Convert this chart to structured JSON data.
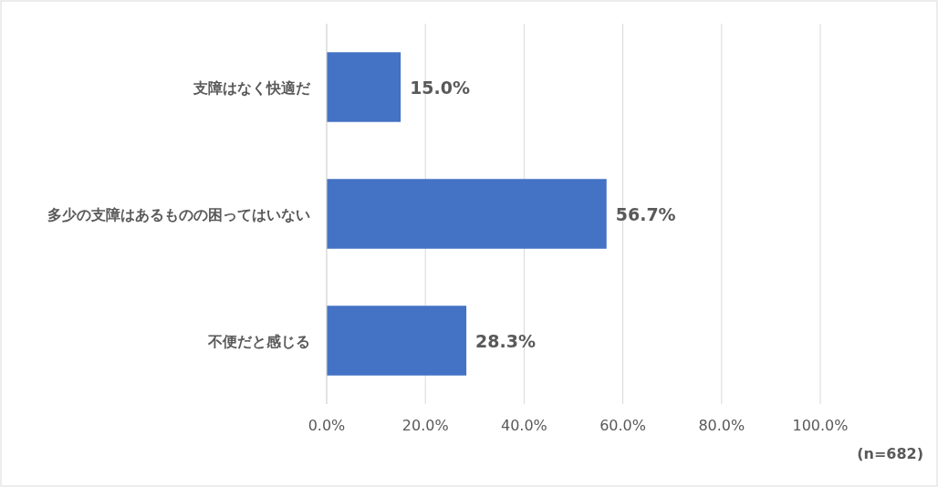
{
  "chart_data": {
    "type": "bar",
    "orientation": "horizontal",
    "categories": [
      "支障はなく快適だ",
      "多少の支障はあるものの困ってはいない",
      "不便だと感じる"
    ],
    "values": [
      15.0,
      56.7,
      28.3
    ],
    "value_labels": [
      "15.0%",
      "56.7%",
      "28.3%"
    ],
    "color": "#4472c4",
    "xlim": [
      0,
      100
    ],
    "xticks": [
      {
        "value": 0,
        "label": "0.0%"
      },
      {
        "value": 20,
        "label": "20.0%"
      },
      {
        "value": 40,
        "label": "40.0%"
      },
      {
        "value": 60,
        "label": "60.0%"
      },
      {
        "value": 80,
        "label": "80.0%"
      },
      {
        "value": 100,
        "label": "100.0%"
      }
    ],
    "grid": "x",
    "annotations": [
      "(n=682)"
    ]
  }
}
